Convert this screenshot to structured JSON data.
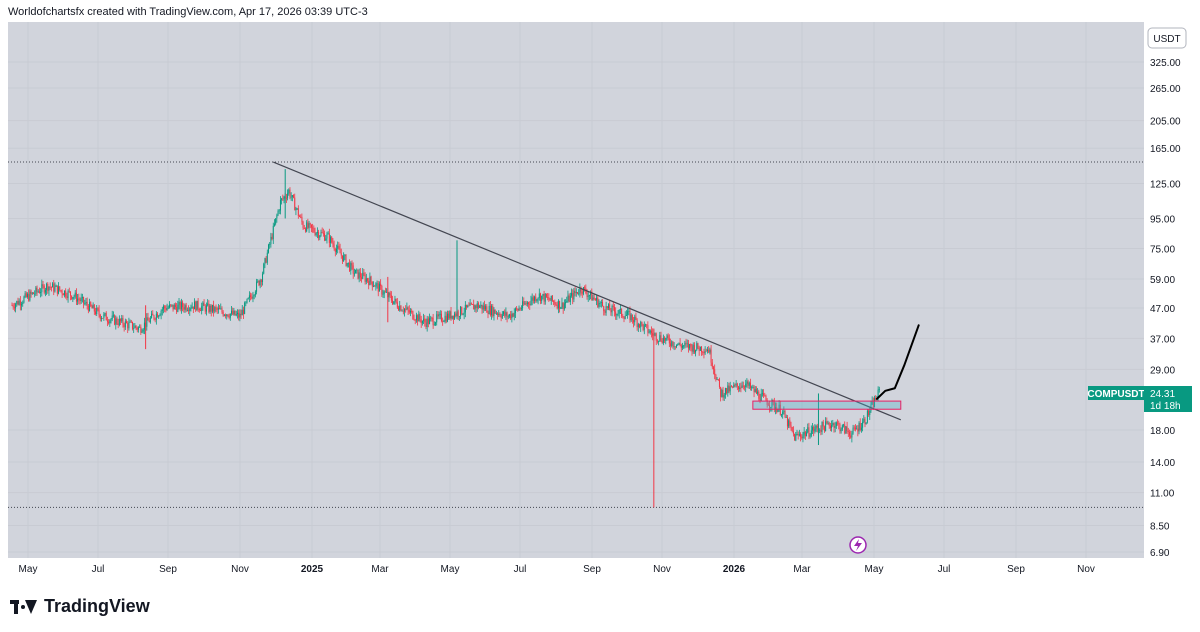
{
  "header": {
    "text": "Worldofchartsfx created with TradingView.com, Apr 17, 2026 03:39 UTC-3"
  },
  "footer": {
    "brand": "TradingView"
  },
  "colors": {
    "background": "#d1d4dc",
    "up": "#089981",
    "down": "#f23645",
    "trendline": "#434651",
    "arrow": "#000000"
  },
  "chart_data": {
    "type": "candlestick",
    "symbol": "COMPUSDT",
    "currency": "USDT",
    "last_price": "24.31",
    "countdown": "1d 18h",
    "scale": "log",
    "y_ticks": [
      "325.00",
      "265.00",
      "205.00",
      "165.00",
      "125.00",
      "95.00",
      "75.00",
      "59.00",
      "47.00",
      "37.00",
      "29.00",
      "18.00",
      "14.00",
      "11.00",
      "8.50",
      "6.90"
    ],
    "x_ticks": [
      {
        "label": "May",
        "bold": false
      },
      {
        "label": "Jul",
        "bold": false
      },
      {
        "label": "Sep",
        "bold": false
      },
      {
        "label": "Nov",
        "bold": false
      },
      {
        "label": "2025",
        "bold": true
      },
      {
        "label": "Mar",
        "bold": false
      },
      {
        "label": "May",
        "bold": false
      },
      {
        "label": "Jul",
        "bold": false
      },
      {
        "label": "Sep",
        "bold": false
      },
      {
        "label": "Nov",
        "bold": false
      },
      {
        "label": "2026",
        "bold": true
      },
      {
        "label": "Mar",
        "bold": false
      },
      {
        "label": "May",
        "bold": false
      },
      {
        "label": "Jul",
        "bold": false
      },
      {
        "label": "Sep",
        "bold": false
      },
      {
        "label": "Nov",
        "bold": false
      }
    ],
    "price_path": [
      [
        "2024-04-20",
        48
      ],
      [
        "2024-05-20",
        56
      ],
      [
        "2024-06-10",
        52
      ],
      [
        "2024-07-05",
        44
      ],
      [
        "2024-08-05",
        40
      ],
      [
        "2024-08-25",
        47
      ],
      [
        "2024-09-20",
        48
      ],
      [
        "2024-10-10",
        46
      ],
      [
        "2024-10-28",
        44
      ],
      [
        "2024-11-15",
        60
      ],
      [
        "2024-12-01",
        108
      ],
      [
        "2024-12-08",
        118
      ],
      [
        "2024-12-20",
        90
      ],
      [
        "2025-01-10",
        82
      ],
      [
        "2025-02-01",
        62
      ],
      [
        "2025-02-15",
        58
      ],
      [
        "2025-03-10",
        48
      ],
      [
        "2025-04-01",
        42
      ],
      [
        "2025-04-20",
        44
      ],
      [
        "2025-05-15",
        48
      ],
      [
        "2025-06-10",
        44
      ],
      [
        "2025-07-05",
        52
      ],
      [
        "2025-07-25",
        48
      ],
      [
        "2025-08-10",
        55
      ],
      [
        "2025-08-30",
        47
      ],
      [
        "2025-09-20",
        44
      ],
      [
        "2025-10-10",
        38
      ],
      [
        "2025-11-01",
        35
      ],
      [
        "2025-11-25",
        34
      ],
      [
        "2025-12-05",
        24
      ],
      [
        "2025-12-25",
        26
      ],
      [
        "2026-01-10",
        23
      ],
      [
        "2026-01-25",
        21
      ],
      [
        "2026-02-05",
        17
      ],
      [
        "2026-02-20",
        18
      ],
      [
        "2026-03-10",
        19
      ],
      [
        "2026-03-25",
        17.5
      ],
      [
        "2026-04-05",
        19.5
      ],
      [
        "2026-04-17",
        24.3
      ]
    ],
    "horizontal_dotted_levels": [
      148,
      9.8
    ],
    "trendline": {
      "from": [
        "2024-11-25",
        148
      ],
      "to": [
        "2026-05-05",
        19.5
      ]
    },
    "support_zone": {
      "x1": "2026-01-01",
      "x2": "2026-05-05",
      "y_low": 21.2,
      "y_high": 22.6
    },
    "projection_arrow": [
      [
        "2026-04-15",
        23
      ],
      [
        "2026-04-22",
        24.5
      ],
      [
        "2026-04-30",
        25
      ],
      [
        "2026-05-08",
        30
      ],
      [
        "2026-05-20",
        41
      ]
    ]
  }
}
